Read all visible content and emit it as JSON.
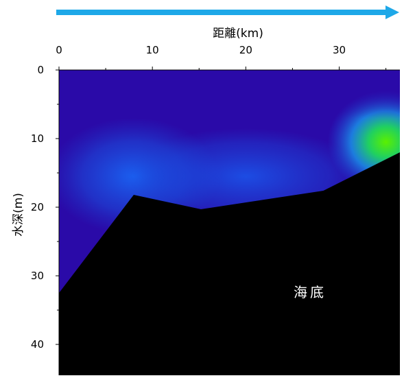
{
  "chart_data": {
    "type": "heatmap",
    "title": "",
    "xlabel": "距離(km)",
    "ylabel": "水深(m)",
    "x_axis_position": "top",
    "y_axis_inverted": true,
    "xlim": [
      0,
      36.5
    ],
    "ylim": [
      0,
      44.5
    ],
    "xticks": [
      0,
      10,
      20,
      30
    ],
    "yticks": [
      0,
      10,
      20,
      30,
      40
    ],
    "x_tick_labels": [
      "0",
      "10",
      "20",
      "30"
    ],
    "y_tick_labels": [
      "0",
      "10",
      "20",
      "30",
      "40"
    ],
    "seabed_profile": [
      {
        "x": 0,
        "depth": 32.5
      },
      {
        "x": 8,
        "depth": 18.2
      },
      {
        "x": 15.2,
        "depth": 20.3
      },
      {
        "x": 28.3,
        "depth": 17.6
      },
      {
        "x": 36.5,
        "depth": 12
      }
    ],
    "annotation": "海底",
    "colors": {
      "arrow": "#1ea8e8",
      "seabed": "#000000",
      "low": "#2a0aa8",
      "mid": "#1a5cf0",
      "high": "#58f000"
    }
  }
}
